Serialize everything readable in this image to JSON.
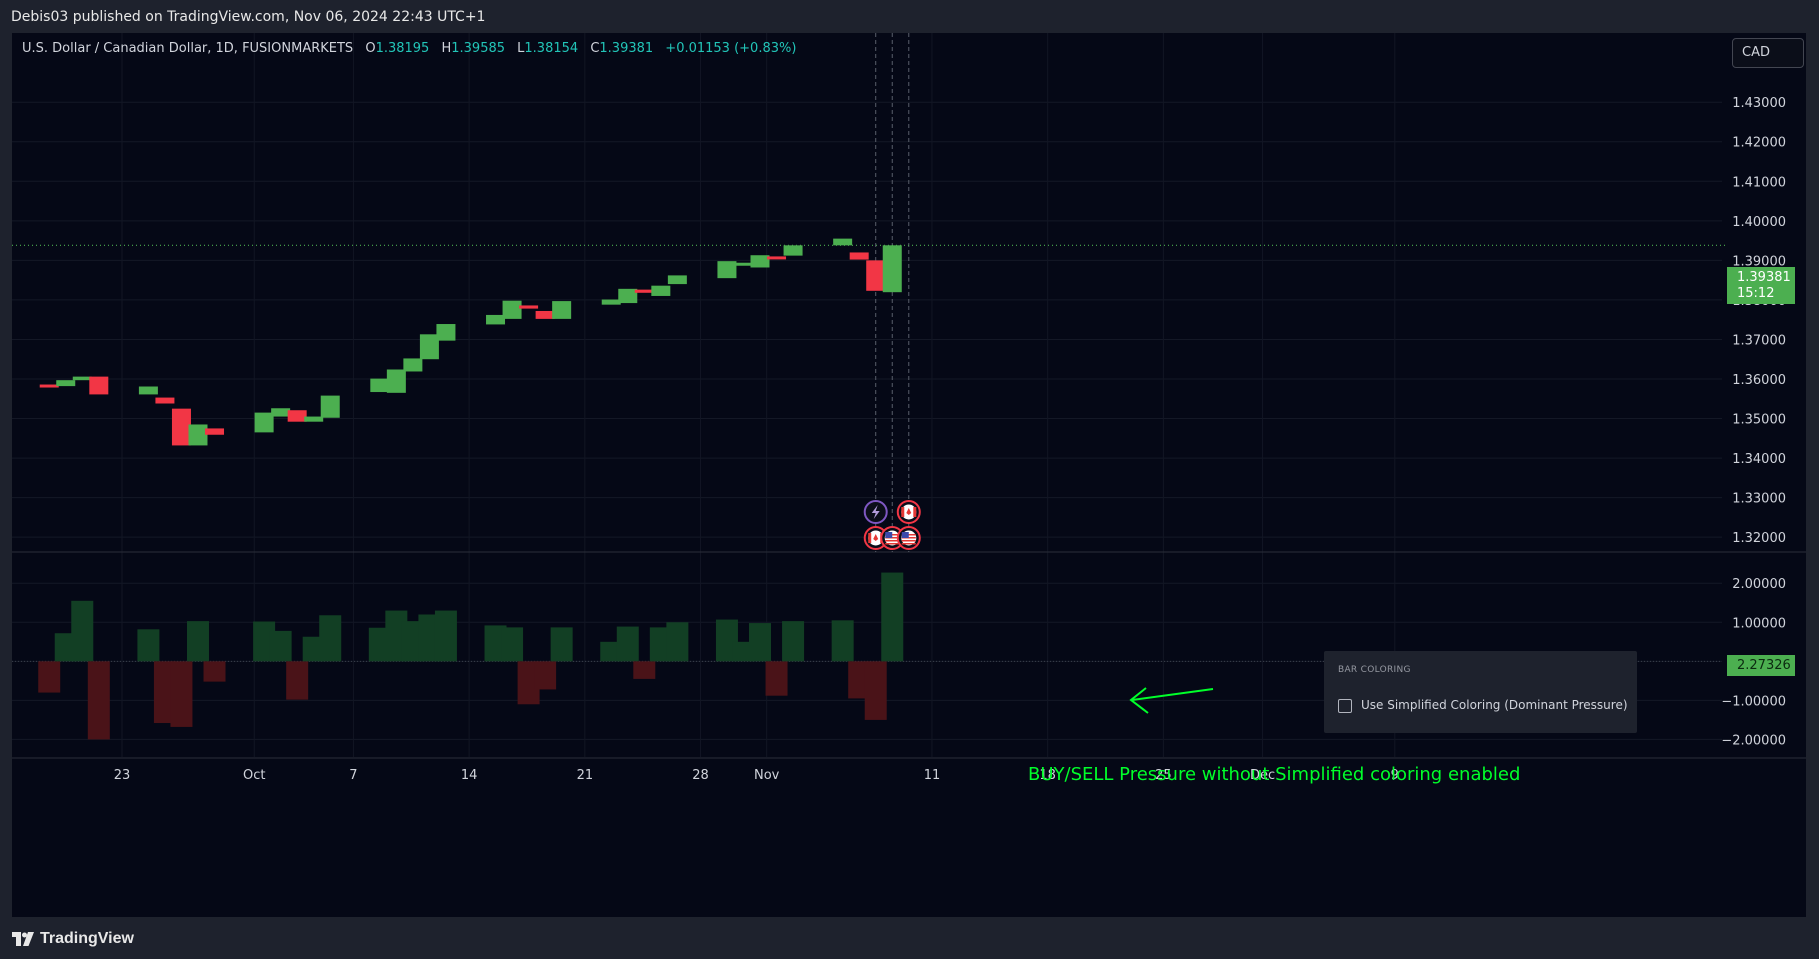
{
  "header": {
    "published": "Debis03 published on TradingView.com, Nov 06, 2024 22:43 UTC+1"
  },
  "legend": {
    "symbol": "U.S. Dollar / Canadian Dollar, 1D, FUSIONMARKETS",
    "o_label": "O",
    "o_value": "1.38195",
    "h_label": "H",
    "h_value": "1.39585",
    "l_label": "L",
    "l_value": "1.38154",
    "c_label": "C",
    "c_value": "1.39381",
    "change": "+0.01153 (+0.83%)"
  },
  "currency_button": "CAD",
  "last_price": {
    "price": "1.39381",
    "countdown": "15:12"
  },
  "oscillator_last": "2.27326",
  "settings_panel": {
    "title": "BAR COLORING",
    "checkbox_label": "Use Simplified Coloring (Dominant Pressure)",
    "checked": false
  },
  "annotation": "BUY/SELL Pressure without Simplified coloring enabled",
  "footer": {
    "brand": "TradingView"
  },
  "colors": {
    "up": "#4caf50",
    "down": "#f23645",
    "osc_up": "#123f24",
    "osc_down": "#4a1318",
    "annotation": "#00ff2a",
    "last_price_line": "#4caf50"
  },
  "event_markers": [
    {
      "icon": "lightning-icon",
      "row": "upper",
      "date": "2024-11-06"
    },
    {
      "icon": "flag-canada-icon",
      "row": "lower",
      "date": "2024-11-06"
    },
    {
      "icon": "flag-usa-icon",
      "row": "lower",
      "date": "2024-11-07"
    },
    {
      "icon": "flag-canada-icon",
      "row": "upper",
      "date": "2024-11-08"
    },
    {
      "icon": "flag-usa-icon",
      "row": "lower",
      "date": "2024-11-08"
    }
  ],
  "chart_data": [
    {
      "type": "candlestick",
      "title": "U.S. Dollar / Canadian Dollar, 1D, FUSIONMARKETS",
      "y_axis_ticks": [
        "1.43000",
        "1.42000",
        "1.41000",
        "1.40000",
        "1.39000",
        "1.38000",
        "1.37000",
        "1.36000",
        "1.35000",
        "1.34000",
        "1.33000",
        "1.32000"
      ],
      "ylim": [
        1.3165,
        1.4475
      ],
      "x_axis_ticks": [
        "23",
        "Oct",
        "7",
        "14",
        "21",
        "28",
        "Nov",
        "11",
        "18",
        "25",
        "Dec",
        "9"
      ],
      "grid": true,
      "candles": [
        {
          "date": "2024-09-17",
          "open": 1.3586,
          "close": 1.3582
        },
        {
          "date": "2024-09-18",
          "open": 1.3582,
          "close": 1.3597
        },
        {
          "date": "2024-09-19",
          "open": 1.3597,
          "close": 1.3606
        },
        {
          "date": "2024-09-20",
          "open": 1.3606,
          "close": 1.3561
        },
        {
          "date": "2024-09-23",
          "open": 1.3561,
          "close": 1.3581
        },
        {
          "date": "2024-09-24",
          "open": 1.3553,
          "close": 1.3538
        },
        {
          "date": "2024-09-25",
          "open": 1.3525,
          "close": 1.3432
        },
        {
          "date": "2024-09-26",
          "open": 1.3432,
          "close": 1.3485
        },
        {
          "date": "2024-09-27",
          "open": 1.3475,
          "close": 1.3459
        },
        {
          "date": "2024-09-30",
          "open": 1.3465,
          "close": 1.3515
        },
        {
          "date": "2024-10-01",
          "open": 1.3505,
          "close": 1.3526
        },
        {
          "date": "2024-10-02",
          "open": 1.3521,
          "close": 1.3492
        },
        {
          "date": "2024-10-03",
          "open": 1.3492,
          "close": 1.3505
        },
        {
          "date": "2024-10-04",
          "open": 1.3502,
          "close": 1.3558
        },
        {
          "date": "2024-10-07",
          "open": 1.3567,
          "close": 1.3601
        },
        {
          "date": "2024-10-08",
          "open": 1.3565,
          "close": 1.3624
        },
        {
          "date": "2024-10-09",
          "open": 1.3619,
          "close": 1.3652
        },
        {
          "date": "2024-10-10",
          "open": 1.365,
          "close": 1.3713
        },
        {
          "date": "2024-10-11",
          "open": 1.3697,
          "close": 1.3739
        },
        {
          "date": "2024-10-14",
          "open": 1.3738,
          "close": 1.3762
        },
        {
          "date": "2024-10-15",
          "open": 1.3752,
          "close": 1.3798
        },
        {
          "date": "2024-10-16",
          "open": 1.3786,
          "close": 1.3778
        },
        {
          "date": "2024-10-17",
          "open": 1.3772,
          "close": 1.3752
        },
        {
          "date": "2024-10-18",
          "open": 1.3752,
          "close": 1.3797
        },
        {
          "date": "2024-10-21",
          "open": 1.3788,
          "close": 1.3801
        },
        {
          "date": "2024-10-22",
          "open": 1.3792,
          "close": 1.3828
        },
        {
          "date": "2024-10-23",
          "open": 1.3826,
          "close": 1.3818
        },
        {
          "date": "2024-10-24",
          "open": 1.381,
          "close": 1.3836
        },
        {
          "date": "2024-10-25",
          "open": 1.384,
          "close": 1.3862
        },
        {
          "date": "2024-10-28",
          "open": 1.3855,
          "close": 1.3898
        },
        {
          "date": "2024-10-29",
          "open": 1.3888,
          "close": 1.3894
        },
        {
          "date": "2024-10-30",
          "open": 1.3882,
          "close": 1.3913
        },
        {
          "date": "2024-10-31",
          "open": 1.391,
          "close": 1.3903
        },
        {
          "date": "2024-11-01",
          "open": 1.3912,
          "close": 1.3938
        },
        {
          "date": "2024-11-04",
          "open": 1.3938,
          "close": 1.3955
        },
        {
          "date": "2024-11-05",
          "open": 1.392,
          "close": 1.3902
        },
        {
          "date": "2024-11-06",
          "open": 1.39,
          "close": 1.3823
        },
        {
          "date": "2024-11-07",
          "open": 1.38195,
          "close": 1.39381
        }
      ]
    },
    {
      "type": "bar",
      "title": "BUY/SELL Pressure",
      "y_axis_ticks": [
        "2.00000",
        "1.00000",
        "0.00000",
        "−1.00000",
        "−2.00000"
      ],
      "ylim": [
        -2.45,
        2.8
      ],
      "series": [
        {
          "name": "Buy Pressure",
          "values": [
            0.0,
            0.72,
            1.55,
            0.0,
            0.82,
            0.0,
            0.0,
            1.03,
            0.0,
            1.02,
            0.78,
            0.0,
            0.63,
            1.18,
            0.86,
            1.3,
            1.03,
            1.2,
            1.3,
            0.92,
            0.87,
            0.0,
            0.0,
            0.87,
            0.5,
            0.89,
            0.0,
            0.87,
            1.0,
            1.07,
            0.5,
            0.98,
            0.0,
            1.03,
            1.05,
            0.0,
            0.0,
            2.27326
          ]
        },
        {
          "name": "Sell Pressure",
          "values": [
            -0.8,
            0.0,
            0.0,
            -2.0,
            0.0,
            -1.58,
            -1.68,
            0.0,
            -0.52,
            0.0,
            0.0,
            -0.98,
            0.0,
            0.0,
            0.0,
            0.0,
            0.0,
            0.0,
            0.0,
            0.0,
            0.0,
            -1.1,
            -0.72,
            0.0,
            0.0,
            0.0,
            -0.45,
            0.0,
            0.0,
            0.0,
            0.0,
            0.0,
            -0.88,
            0.0,
            0.0,
            -0.95,
            -1.5,
            0.0
          ]
        }
      ]
    }
  ]
}
